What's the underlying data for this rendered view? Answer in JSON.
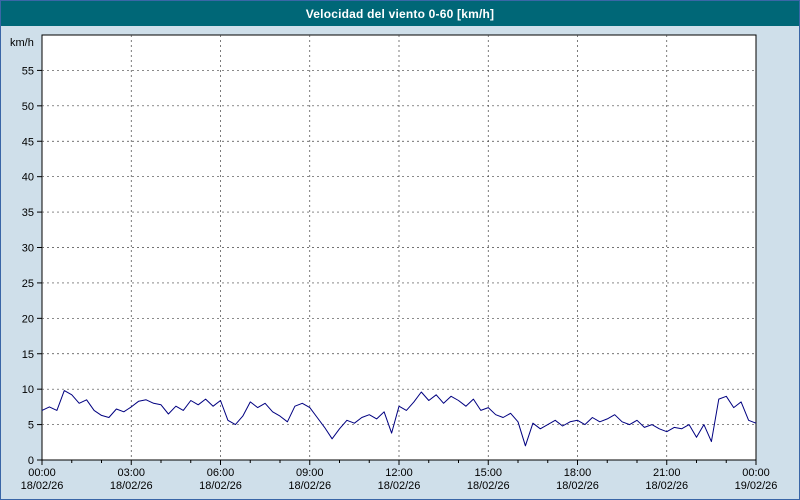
{
  "title_bar": {
    "text": "Velocidad del viento 0-60 [km/h]"
  },
  "colors": {
    "title_bar_bg": "#006777",
    "title_bar_text": "#ffffff",
    "page_bg": "#cfdfea",
    "frame_border": "#3a66a7",
    "plot_bg": "#ffffff",
    "grid": "#444444",
    "axis": "#000000",
    "line": "#000080"
  },
  "chart_data": {
    "type": "line",
    "title": "Velocidad del viento 0-60 [km/h]",
    "xlabel": "",
    "ylabel": "km/h",
    "ylim": [
      0,
      60
    ],
    "xlim": [
      0,
      24
    ],
    "grid": true,
    "legend": "none",
    "yticks": [
      0,
      5,
      10,
      15,
      20,
      25,
      30,
      35,
      40,
      45,
      50,
      55
    ],
    "xticks": [
      {
        "hour": 0,
        "time": "00:00",
        "date": "18/02/26"
      },
      {
        "hour": 3,
        "time": "03:00",
        "date": "18/02/26"
      },
      {
        "hour": 6,
        "time": "06:00",
        "date": "18/02/26"
      },
      {
        "hour": 9,
        "time": "09:00",
        "date": "18/02/26"
      },
      {
        "hour": 12,
        "time": "12:00",
        "date": "18/02/26"
      },
      {
        "hour": 15,
        "time": "15:00",
        "date": "18/02/26"
      },
      {
        "hour": 18,
        "time": "18:00",
        "date": "18/02/26"
      },
      {
        "hour": 21,
        "time": "21:00",
        "date": "18/02/26"
      },
      {
        "hour": 24,
        "time": "00:00",
        "date": "19/02/26"
      }
    ],
    "x_hours": {
      "start": 0,
      "step": 0.25,
      "count": 97
    },
    "series": [
      {
        "name": "Velocidad del viento [km/h]",
        "values": [
          7,
          7.5,
          7,
          9.8,
          9.2,
          8,
          8.5,
          7,
          6.3,
          6,
          7.2,
          6.8,
          7.5,
          8.3,
          8.5,
          8,
          7.8,
          6.5,
          7.6,
          7,
          8.4,
          7.8,
          8.6,
          7.6,
          8.4,
          5.6,
          5,
          6.2,
          8.2,
          7.4,
          8,
          6.8,
          6.2,
          5.4,
          7.6,
          8,
          7.4,
          6,
          4.6,
          3,
          4.4,
          5.6,
          5.2,
          6,
          6.4,
          5.8,
          6.8,
          3.8,
          7.6,
          7,
          8.2,
          9.6,
          8.4,
          9.2,
          8,
          9,
          8.4,
          7.6,
          8.6,
          7,
          7.4,
          6.4,
          6,
          6.6,
          5.4,
          2,
          5.2,
          4.4,
          5,
          5.6,
          4.8,
          5.4,
          5.6,
          5,
          6,
          5.4,
          5.8,
          6.4,
          5.4,
          5,
          5.6,
          4.6,
          5,
          4.4,
          4,
          4.6,
          4.4,
          5,
          3.2,
          5,
          2.6,
          8.6,
          9,
          7.4,
          8.2,
          5.6,
          5.2
        ]
      }
    ]
  }
}
